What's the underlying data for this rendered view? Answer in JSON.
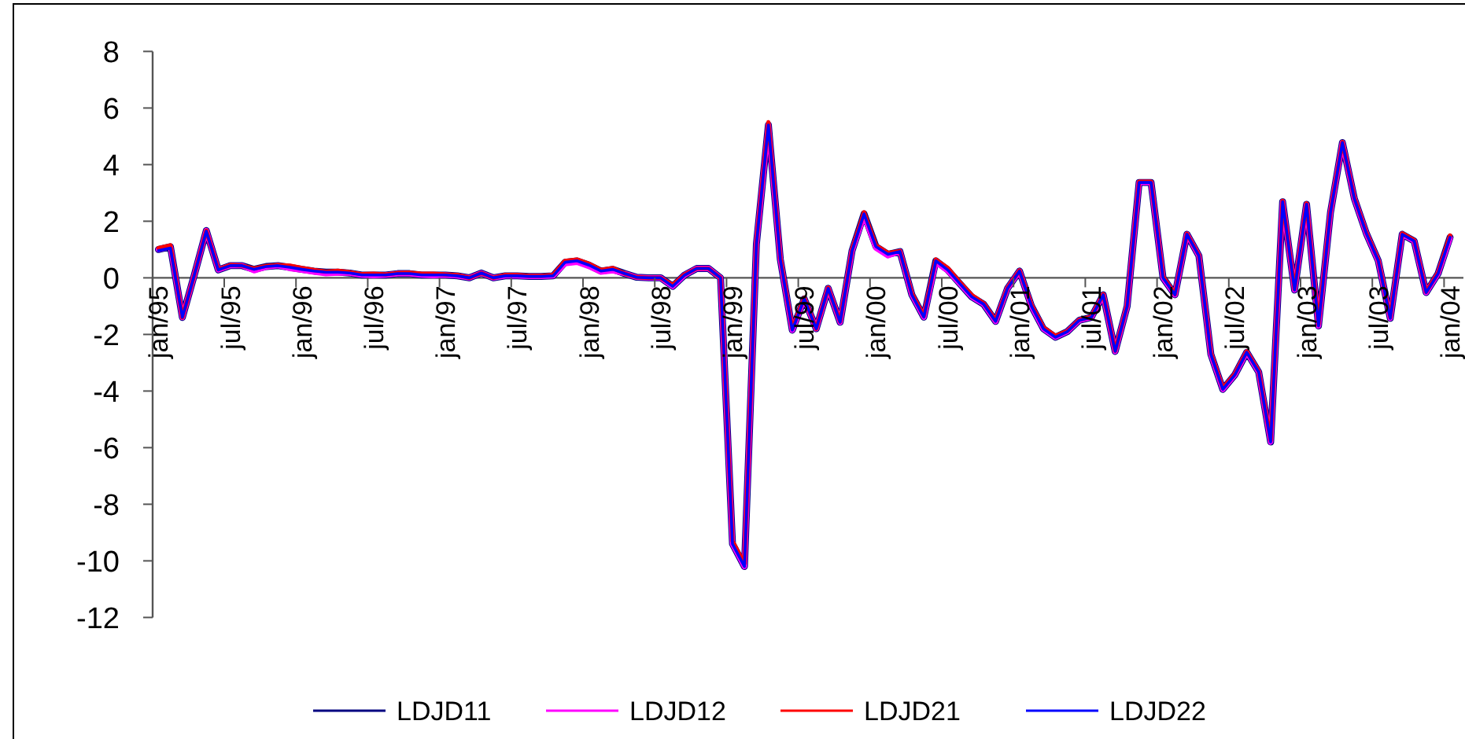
{
  "chart_data": {
    "type": "line",
    "categories": [
      "jan/95",
      null,
      null,
      null,
      null,
      null,
      "jul/95",
      null,
      null,
      null,
      null,
      null,
      "jan/96",
      null,
      null,
      null,
      null,
      null,
      "jul/96",
      null,
      null,
      null,
      null,
      null,
      "jan/97",
      null,
      null,
      null,
      null,
      null,
      "jul/97",
      null,
      null,
      null,
      null,
      null,
      "jan/98",
      null,
      null,
      null,
      null,
      null,
      "jul/98",
      null,
      null,
      null,
      null,
      null,
      "jan/99",
      null,
      null,
      null,
      null,
      null,
      "jul/99",
      null,
      null,
      null,
      null,
      null,
      "jan/00",
      null,
      null,
      null,
      null,
      null,
      "jul/00",
      null,
      null,
      null,
      null,
      null,
      "jan/01",
      null,
      null,
      null,
      null,
      null,
      "jul/01",
      null,
      null,
      null,
      null,
      null,
      "jan/02",
      null,
      null,
      null,
      null,
      null,
      "jul/02",
      null,
      null,
      null,
      null,
      null,
      "jan/03",
      null,
      null,
      null,
      null,
      null,
      "jul/03",
      null,
      null,
      null,
      null,
      null,
      "jan/04"
    ],
    "series": [
      {
        "name": "LDJD11",
        "color": "#000080",
        "values": [
          1.0,
          1.1,
          -1.4,
          0.1,
          1.67,
          0.28,
          0.43,
          0.43,
          0.3,
          0.4,
          0.43,
          0.37,
          0.3,
          0.24,
          0.2,
          0.2,
          0.17,
          0.1,
          0.1,
          0.1,
          0.15,
          0.15,
          0.1,
          0.1,
          0.1,
          0.07,
          0,
          0.17,
          0,
          0.07,
          0.07,
          0.05,
          0.05,
          0.07,
          0.55,
          0.6,
          0.45,
          0.24,
          0.3,
          0.15,
          0.02,
          0,
          0,
          -0.3,
          0.1,
          0.33,
          0.33,
          0,
          -9.4,
          -10.2,
          1.2,
          5.4,
          0.65,
          -1.85,
          -0.74,
          -1.8,
          -0.37,
          -1.57,
          0.96,
          2.26,
          1.1,
          0.83,
          0.93,
          -0.6,
          -1.39,
          0.6,
          0.28,
          -0.2,
          -0.67,
          -0.93,
          -1.54,
          -0.37,
          0.24,
          -1.0,
          -1.8,
          -2.1,
          -1.9,
          -1.5,
          -1.4,
          -0.6,
          -2.6,
          -1.0,
          3.37,
          3.37,
          0,
          -0.6,
          1.54,
          0.78,
          -2.7,
          -3.94,
          -3.43,
          -2.63,
          -3.33,
          -5.8,
          2.69,
          -0.43,
          2.6,
          -1.7,
          2.3,
          4.78,
          2.8,
          1.57,
          0.6,
          -1.43,
          1.54,
          1.3,
          -0.52,
          0.15,
          1.43
        ]
      },
      {
        "name": "LDJD12",
        "color": "#ff00ff",
        "values": [
          1.0,
          1.1,
          -1.4,
          0.1,
          1.67,
          0.28,
          0.43,
          0.43,
          0.25,
          0.38,
          0.43,
          0.33,
          0.27,
          0.2,
          0.15,
          0.17,
          0.17,
          0.1,
          0.08,
          0.1,
          0.15,
          0.15,
          0.1,
          0.08,
          0.1,
          0.07,
          0,
          0.17,
          0,
          0.07,
          0.07,
          0.05,
          0.05,
          0.07,
          0.5,
          0.55,
          0.4,
          0.2,
          0.25,
          0.15,
          0.02,
          0,
          0,
          -0.3,
          0.1,
          0.33,
          0.33,
          0,
          -9.4,
          -10.2,
          1.2,
          5.4,
          0.65,
          -1.85,
          -0.74,
          -1.8,
          -0.37,
          -1.57,
          0.96,
          2.2,
          1.05,
          0.78,
          0.93,
          -0.6,
          -1.39,
          0.55,
          0.25,
          -0.2,
          -0.67,
          -0.93,
          -1.54,
          -0.37,
          0.24,
          -1.0,
          -1.8,
          -2.1,
          -1.9,
          -1.5,
          -1.4,
          -0.6,
          -2.6,
          -1.0,
          3.37,
          3.37,
          0,
          -0.6,
          1.54,
          0.78,
          -2.7,
          -3.94,
          -3.43,
          -2.63,
          -3.33,
          -5.8,
          2.69,
          -0.43,
          2.6,
          -1.7,
          2.3,
          4.78,
          2.8,
          1.57,
          0.6,
          -1.43,
          1.54,
          1.3,
          -0.52,
          0.15,
          1.4
        ]
      },
      {
        "name": "LDJD21",
        "color": "#ff0000",
        "values": [
          1.05,
          1.15,
          -1.4,
          0.1,
          1.67,
          0.3,
          0.45,
          0.43,
          0.33,
          0.42,
          0.45,
          0.43,
          0.35,
          0.28,
          0.22,
          0.25,
          0.2,
          0.13,
          0.15,
          0.12,
          0.17,
          0.18,
          0.15,
          0.15,
          0.12,
          0.1,
          0,
          0.17,
          0,
          0.1,
          0.1,
          0.07,
          0.07,
          0.1,
          0.6,
          0.65,
          0.5,
          0.28,
          0.35,
          0.15,
          0.02,
          0,
          0,
          -0.25,
          0.12,
          0.33,
          0.33,
          0,
          -9.3,
          -10.1,
          1.25,
          5.5,
          0.7,
          -1.8,
          -0.7,
          -1.8,
          -0.35,
          -1.55,
          1.0,
          2.32,
          1.15,
          0.88,
          0.95,
          -0.55,
          -1.35,
          0.65,
          0.35,
          -0.15,
          -0.6,
          -0.9,
          -1.5,
          -0.35,
          0.26,
          -0.95,
          -1.75,
          -2.05,
          -1.88,
          -1.48,
          -1.38,
          -0.58,
          -2.58,
          -0.98,
          3.4,
          3.4,
          0.05,
          -0.58,
          1.56,
          0.8,
          -2.65,
          -3.9,
          -3.4,
          -2.6,
          -3.3,
          -5.75,
          2.72,
          -0.4,
          2.63,
          -1.65,
          2.33,
          4.8,
          2.83,
          1.6,
          0.63,
          -1.4,
          1.57,
          1.33,
          -0.5,
          0.18,
          1.5
        ]
      },
      {
        "name": "LDJD22",
        "color": "#0000ff",
        "values": [
          0.96,
          1.05,
          -1.4,
          0.1,
          1.65,
          0.28,
          0.43,
          0.43,
          0.3,
          0.4,
          0.43,
          0.37,
          0.3,
          0.24,
          0.2,
          0.2,
          0.17,
          0.1,
          0.1,
          0.1,
          0.15,
          0.15,
          0.1,
          0.1,
          0.1,
          0.07,
          0,
          0.17,
          0,
          0.07,
          0.07,
          0.05,
          0.05,
          0.07,
          0.55,
          0.6,
          0.45,
          0.24,
          0.3,
          0.15,
          0.02,
          0,
          0,
          -0.3,
          0.1,
          0.33,
          0.33,
          0,
          -9.4,
          -10.2,
          1.2,
          5.4,
          0.65,
          -1.85,
          -0.74,
          -1.8,
          -0.37,
          -1.57,
          0.96,
          2.26,
          1.1,
          0.83,
          0.93,
          -0.6,
          -1.39,
          0.6,
          0.28,
          -0.2,
          -0.67,
          -0.93,
          -1.54,
          -0.37,
          0.24,
          -1.0,
          -1.8,
          -2.1,
          -1.9,
          -1.5,
          -1.4,
          -0.6,
          -2.6,
          -1.0,
          3.37,
          3.37,
          0,
          -0.6,
          1.54,
          0.78,
          -2.7,
          -3.94,
          -3.43,
          -2.63,
          -3.33,
          -5.8,
          2.69,
          -0.43,
          2.6,
          -1.7,
          2.3,
          4.78,
          2.8,
          1.57,
          0.6,
          -1.43,
          1.54,
          1.3,
          -0.52,
          0.15,
          1.43
        ]
      }
    ],
    "ylim": [
      -12,
      8
    ],
    "yticks": [
      -12,
      -10,
      -8,
      -6,
      -4,
      -2,
      0,
      2,
      4,
      6,
      8
    ],
    "grid": false,
    "legend": "bottom",
    "marker": "none",
    "line_style": "solid"
  }
}
